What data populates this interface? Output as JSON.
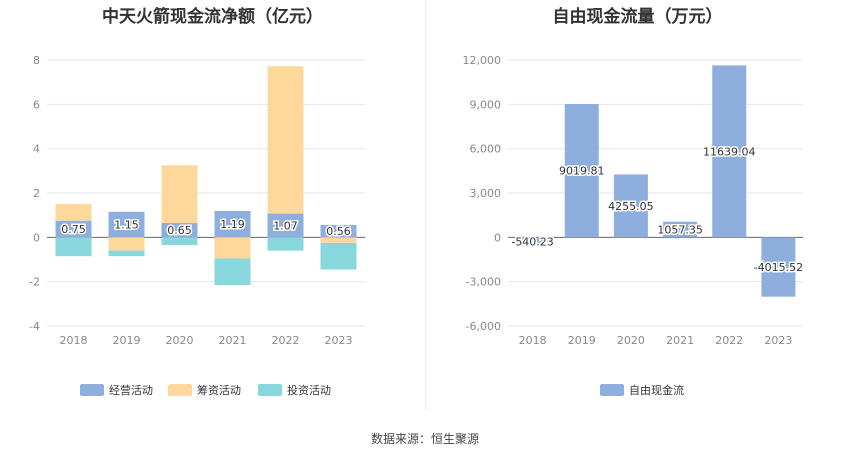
{
  "source": "数据来源：恒生聚源",
  "colors": {
    "operating": "#8eaedd",
    "financing": "#fdd89a",
    "investing": "#88d7dc",
    "fcf": "#8eaedd",
    "grid": "#e6e6e6",
    "axis": "#666666"
  },
  "chart_data": [
    {
      "type": "bar",
      "stacked": true,
      "title": "中天火箭现金流净额（亿元）",
      "categories": [
        "2018",
        "2019",
        "2020",
        "2021",
        "2022",
        "2023"
      ],
      "series": [
        {
          "name": "经营活动",
          "key": "operating",
          "values": [
            0.75,
            1.15,
            0.65,
            1.19,
            1.07,
            0.56
          ]
        },
        {
          "name": "筹资活动",
          "key": "financing",
          "values": [
            0.75,
            -0.6,
            2.6,
            -0.95,
            6.65,
            -0.25
          ]
        },
        {
          "name": "投资活动",
          "key": "investing",
          "values": [
            -0.85,
            -0.25,
            -0.35,
            -1.2,
            -0.6,
            -1.2
          ]
        }
      ],
      "data_labels": [
        "0.75",
        "1.15",
        "0.65",
        "1.19",
        "1.07",
        "0.56"
      ],
      "yticks": [
        "8",
        "6",
        "4",
        "2",
        "0",
        "-2",
        "-4"
      ],
      "ylim": [
        -4,
        8
      ],
      "legend": "bottom"
    },
    {
      "type": "bar",
      "title": "自由现金流量（万元）",
      "categories": [
        "2018",
        "2019",
        "2020",
        "2021",
        "2022",
        "2023"
      ],
      "series": [
        {
          "name": "自由现金流",
          "key": "fcf",
          "values": [
            -540.23,
            9019.81,
            4255.05,
            1057.35,
            11639.04,
            -4015.52
          ]
        }
      ],
      "data_labels": [
        "-540.23",
        "9019.81",
        "4255.05",
        "1057.35",
        "11639.04",
        "-4015.52"
      ],
      "yticks": [
        "12,000",
        "9,000",
        "6,000",
        "3,000",
        "0",
        "-3,000",
        "-6,000"
      ],
      "ylim": [
        -6000,
        12000
      ],
      "legend": "bottom"
    }
  ]
}
